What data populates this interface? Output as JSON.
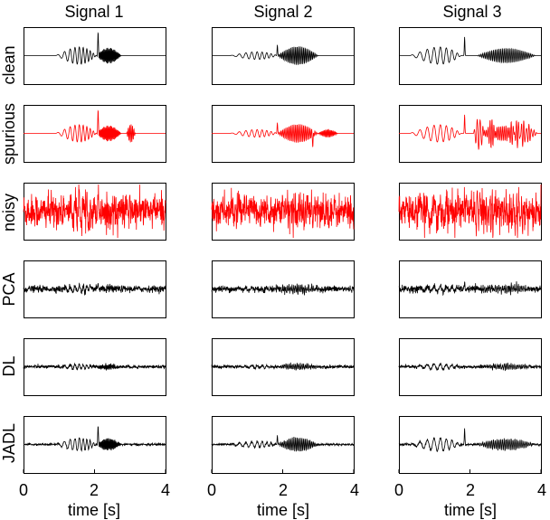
{
  "chart_data": {
    "type": "line",
    "column_titles": [
      "Signal 1",
      "Signal 2",
      "Signal 3"
    ],
    "row_labels": [
      "clean",
      "spurious",
      "noisy",
      "PCA",
      "DL",
      "JADL"
    ],
    "xlabel": "time [s]",
    "xlim": [
      0,
      4
    ],
    "xticks": [
      0,
      2,
      4
    ],
    "ylim": [
      -1,
      1
    ],
    "colors": {
      "clean": "#000000",
      "spurious": "#ff0000",
      "noisy": "#ff0000",
      "PCA": "#000000",
      "DL": "#000000",
      "JADL": "#000000"
    },
    "signals": [
      {
        "components": [
          {
            "type": "chirp",
            "t0": 0.9,
            "t1": 2.05,
            "f0": 4,
            "f1": 12,
            "amp": 0.45
          },
          {
            "type": "burst",
            "t0": 2.05,
            "t1": 2.75,
            "f": 35,
            "amp": 0.3
          },
          {
            "type": "spike",
            "t": 2.1,
            "amp": 0.95
          }
        ],
        "spurious": [
          {
            "type": "burst",
            "t0": 2.9,
            "t1": 3.15,
            "f": 25,
            "amp": 0.35
          }
        ]
      },
      {
        "components": [
          {
            "type": "chirp",
            "t0": 0.5,
            "t1": 1.85,
            "f0": 4,
            "f1": 9,
            "amp": 0.2
          },
          {
            "type": "burst",
            "t0": 1.85,
            "t1": 3.0,
            "f": 22,
            "amp": 0.35
          },
          {
            "type": "spike",
            "t": 1.85,
            "amp": 0.4
          }
        ],
        "spurious": [
          {
            "type": "burst",
            "t0": 3.0,
            "t1": 3.55,
            "f": 30,
            "amp": 0.15
          },
          {
            "type": "spike",
            "t": 2.85,
            "amp": -0.5
          }
        ]
      },
      {
        "components": [
          {
            "type": "chirp",
            "t0": 0.3,
            "t1": 1.75,
            "f0": 4,
            "f1": 7,
            "amp": 0.45
          },
          {
            "type": "spike",
            "t": 1.85,
            "amp": 0.7
          },
          {
            "type": "burst",
            "t0": 2.2,
            "t1": 3.85,
            "f": 20,
            "amp": 0.28
          }
        ],
        "spurious": [
          {
            "type": "burst",
            "t0": 2.1,
            "t1": 2.4,
            "f": 12,
            "amp": 0.6
          },
          {
            "type": "burst",
            "t0": 2.5,
            "t1": 2.75,
            "f": 18,
            "amp": 0.5
          },
          {
            "type": "burst",
            "t0": 3.0,
            "t1": 3.9,
            "f": 14,
            "amp": 0.35
          }
        ]
      }
    ],
    "reconstructions": {
      "PCA": {
        "noise": 0.06,
        "gain": 0.35,
        "spike_gain": 0.25
      },
      "DL": {
        "noise": 0.03,
        "gain": 0.3,
        "spike_gain": 0.0
      },
      "JADL": {
        "noise": 0.02,
        "gain": 0.75,
        "spike_gain": 0.85
      }
    },
    "noisy": {
      "noise": 0.3
    }
  }
}
